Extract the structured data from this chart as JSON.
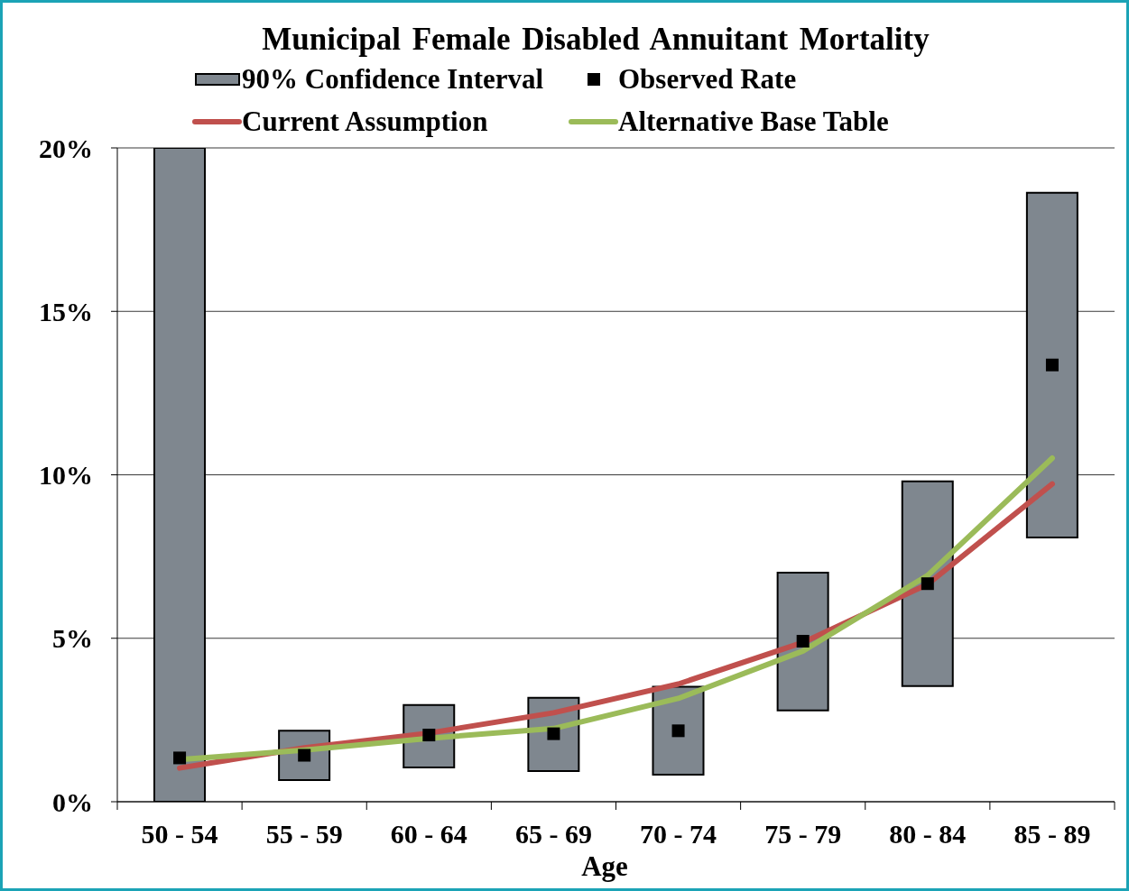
{
  "chart_data": {
    "type": "bar",
    "title": "Municipal Female Disabled Annuitant Mortality",
    "xlabel": "Age",
    "categories": [
      "50 - 54",
      "55 - 59",
      "60 - 64",
      "65 - 69",
      "70 - 74",
      "75 - 79",
      "80 - 84",
      "85 - 89"
    ],
    "series": [
      {
        "name": "90% Confidence Interval",
        "color": "#7f878f",
        "base": [
          0,
          0.66,
          1.05,
          0.94,
          0.83,
          2.79,
          3.54,
          8.08
        ],
        "values": [
          20,
          1.51,
          1.91,
          2.24,
          2.69,
          4.22,
          6.26,
          10.55
        ]
      },
      {
        "name": "Observed Rate",
        "type": "scatter",
        "color": "#000000",
        "marker": "square",
        "values": [
          1.34,
          1.42,
          2.04,
          2.08,
          2.17,
          4.91,
          6.67,
          13.36
        ]
      },
      {
        "name": "Current Assumption",
        "type": "line",
        "color": "#c0504d",
        "values": [
          1.03,
          1.65,
          2.1,
          2.72,
          3.6,
          4.87,
          6.65,
          9.72
        ]
      },
      {
        "name": "Alternative Base Table",
        "type": "line",
        "color": "#9bbb59",
        "values": [
          1.29,
          1.58,
          1.94,
          2.24,
          3.16,
          4.61,
          6.92,
          10.51
        ]
      }
    ],
    "ylim": [
      0,
      20
    ],
    "yticks": [
      {
        "value": 0,
        "label": "0%"
      },
      {
        "value": 5,
        "label": "5%"
      },
      {
        "value": 10,
        "label": "10%"
      },
      {
        "value": 15,
        "label": "15%"
      },
      {
        "value": 20,
        "label": "20%"
      }
    ],
    "grid": "y",
    "legend": "top"
  }
}
